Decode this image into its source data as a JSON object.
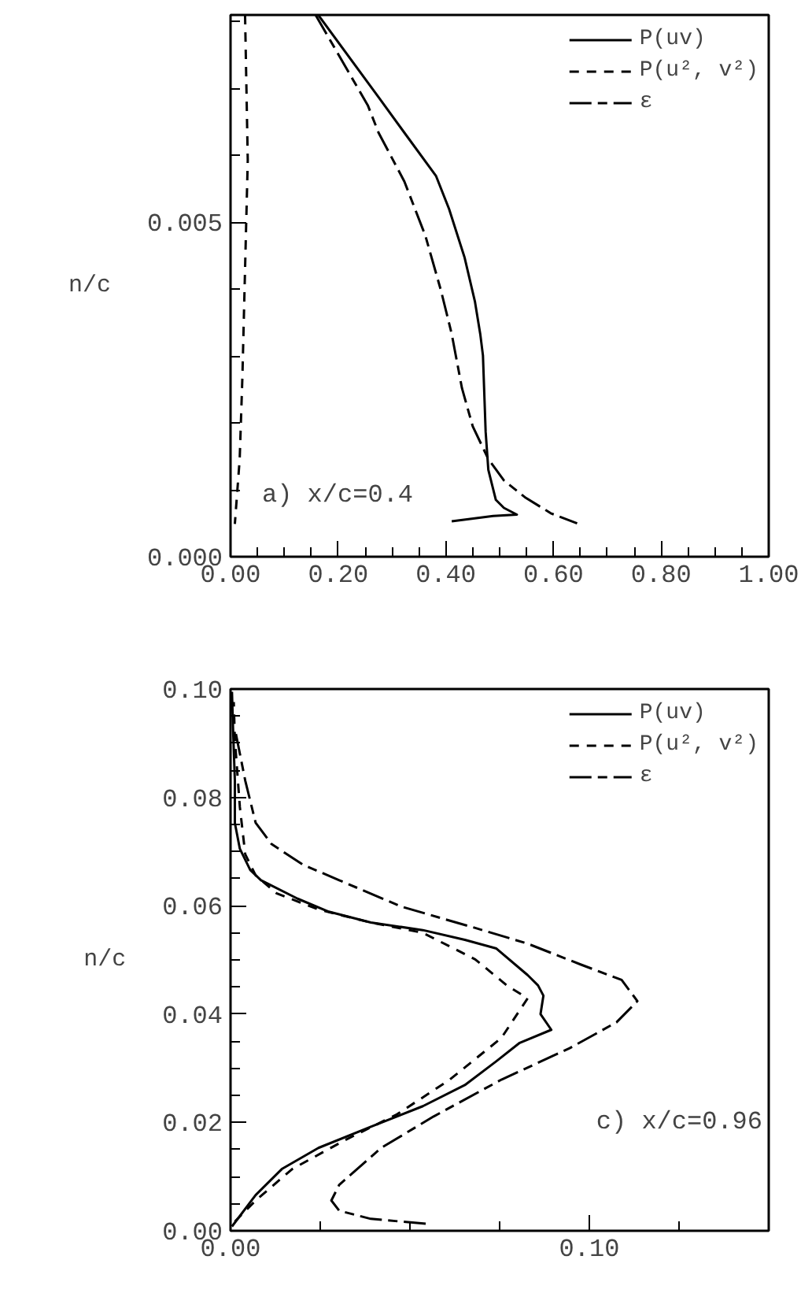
{
  "chart_data": [
    {
      "type": "line",
      "ylabel": "n/c",
      "annotations": [
        "a) x/c=0.4"
      ],
      "legend": "top right",
      "grid": false,
      "xlim": [
        0,
        1
      ],
      "ylim": [
        0,
        0.0081
      ],
      "xticks": [
        {
          "value": 0,
          "label": "0.00"
        },
        {
          "value": 0.05,
          "label": null
        },
        {
          "value": 0.1,
          "label": null
        },
        {
          "value": 0.15,
          "label": null
        },
        {
          "value": 0.2,
          "label": "0.20"
        },
        {
          "value": 0.25,
          "label": null
        },
        {
          "value": 0.3,
          "label": null
        },
        {
          "value": 0.35,
          "label": null
        },
        {
          "value": 0.4,
          "label": "0.40"
        },
        {
          "value": 0.45,
          "label": null
        },
        {
          "value": 0.5,
          "label": null
        },
        {
          "value": 0.55,
          "label": null
        },
        {
          "value": 0.6,
          "label": "0.60"
        },
        {
          "value": 0.65,
          "label": null
        },
        {
          "value": 0.7,
          "label": null
        },
        {
          "value": 0.75,
          "label": null
        },
        {
          "value": 0.8,
          "label": "0.80"
        },
        {
          "value": 0.85,
          "label": null
        },
        {
          "value": 0.9,
          "label": null
        },
        {
          "value": 0.95,
          "label": null
        },
        {
          "value": 1,
          "label": "1.00"
        }
      ],
      "yticks": [
        {
          "value": 0,
          "label": "0.000"
        },
        {
          "value": 0.001,
          "label": null
        },
        {
          "value": 0.002,
          "label": null
        },
        {
          "value": 0.003,
          "label": null
        },
        {
          "value": 0.004,
          "label": null
        },
        {
          "value": 0.005,
          "label": "0.005"
        },
        {
          "value": 0.006,
          "label": null
        },
        {
          "value": 0.007,
          "label": null
        },
        {
          "value": 0.008,
          "label": null
        }
      ],
      "series": [
        {
          "name": "P(uv)",
          "color": "#000000",
          "line_style": "solid",
          "x": [
            0.163,
            0.275,
            0.323,
            0.382,
            0.406,
            0.435,
            0.454,
            0.464,
            0.469,
            0.474,
            0.479,
            0.493,
            0.508,
            0.532,
            0.488,
            0.411
          ],
          "values": [
            0.0081,
            0.00687,
            0.00634,
            0.00569,
            0.0052,
            0.00447,
            0.00382,
            0.00333,
            0.00301,
            0.00187,
            0.0013,
            0.00085,
            0.00073,
            0.00063,
            0.00061,
            0.00053
          ]
        },
        {
          "name": "P(u², v²)",
          "color": "#000000",
          "line_style": "dashed",
          "x": [
            0.027,
            0.032,
            0.027,
            0.022,
            0.017,
            0.008
          ],
          "values": [
            0.0081,
            0.00593,
            0.00431,
            0.00268,
            0.00146,
            0.00049
          ]
        },
        {
          "name": "ε",
          "color": "#000000",
          "line_style": "dashdot",
          "x": [
            0.158,
            0.255,
            0.275,
            0.323,
            0.362,
            0.391,
            0.411,
            0.43,
            0.45,
            0.479,
            0.508,
            0.547,
            0.595,
            0.644
          ],
          "values": [
            0.0081,
            0.00675,
            0.00634,
            0.00561,
            0.0048,
            0.00398,
            0.00333,
            0.00252,
            0.00195,
            0.00146,
            0.00114,
            0.00089,
            0.00065,
            0.0005
          ]
        }
      ]
    },
    {
      "type": "line",
      "ylabel": "n/c",
      "annotations": [
        "c) x/c=0.96"
      ],
      "legend": "top right",
      "grid": false,
      "xlim": [
        0,
        0.15
      ],
      "ylim": [
        0,
        0.1
      ],
      "xticks": [
        {
          "value": 0,
          "label": "0.00"
        },
        {
          "value": 0.025,
          "label": null
        },
        {
          "value": 0.05,
          "label": null
        },
        {
          "value": 0.075,
          "label": null
        },
        {
          "value": 0.1,
          "label": "0.10"
        },
        {
          "value": 0.125,
          "label": null
        }
      ],
      "yticks": [
        {
          "value": 0,
          "label": "0.00"
        },
        {
          "value": 0.005,
          "label": null
        },
        {
          "value": 0.01,
          "label": null
        },
        {
          "value": 0.015,
          "label": null
        },
        {
          "value": 0.02,
          "label": "0.02"
        },
        {
          "value": 0.025,
          "label": null
        },
        {
          "value": 0.03,
          "label": null
        },
        {
          "value": 0.035,
          "label": null
        },
        {
          "value": 0.04,
          "label": "0.04"
        },
        {
          "value": 0.045,
          "label": null
        },
        {
          "value": 0.05,
          "label": null
        },
        {
          "value": 0.055,
          "label": null
        },
        {
          "value": 0.06,
          "label": "0.06"
        },
        {
          "value": 0.065,
          "label": null
        },
        {
          "value": 0.07,
          "label": null
        },
        {
          "value": 0.075,
          "label": null
        },
        {
          "value": 0.08,
          "label": "0.08"
        },
        {
          "value": 0.085,
          "label": null
        },
        {
          "value": 0.09,
          "label": null
        },
        {
          "value": 0.095,
          "label": null
        },
        {
          "value": 0.1,
          "label": "0.10"
        }
      ],
      "series": [
        {
          "name": "P(uv)",
          "color": "#000000",
          "line_style": "solid",
          "x": [
            0.0004,
            0.007,
            0.0143,
            0.0245,
            0.0391,
            0.0536,
            0.0653,
            0.0741,
            0.0806,
            0.0894,
            0.0864,
            0.0872,
            0.0857,
            0.0828,
            0.0741,
            0.0653,
            0.0536,
            0.0391,
            0.0274,
            0.0187,
            0.0085,
            0.0055,
            0.0026,
            0.0012,
            0.0012,
            0.0007,
            0.0004
          ],
          "values": [
            0.0008,
            0.0066,
            0.0114,
            0.0153,
            0.0192,
            0.023,
            0.0269,
            0.0313,
            0.0347,
            0.0371,
            0.04,
            0.0434,
            0.0453,
            0.0472,
            0.0521,
            0.0537,
            0.0555,
            0.0569,
            0.0589,
            0.0613,
            0.0647,
            0.0666,
            0.0705,
            0.0753,
            0.0831,
            0.0927,
            0.0995
          ]
        },
        {
          "name": "P(u², v²)",
          "color": "#000000",
          "line_style": "dashed",
          "x": [
            0.0012,
            0.007,
            0.0172,
            0.0318,
            0.0464,
            0.0609,
            0.0755,
            0.0828,
            0.077,
            0.0682,
            0.0536,
            0.0391,
            0.0245,
            0.0128,
            0.007,
            0.0041,
            0.0026,
            0.0012,
            0.0009
          ],
          "values": [
            0.0017,
            0.0056,
            0.0114,
            0.0167,
            0.0215,
            0.0278,
            0.0356,
            0.0429,
            0.0453,
            0.0501,
            0.055,
            0.0569,
            0.0593,
            0.0623,
            0.0656,
            0.0695,
            0.0782,
            0.0908,
            0.0976
          ]
        },
        {
          "name": "ε",
          "color": "#000000",
          "line_style": "dashdot",
          "x": [
            0.0544,
            0.0391,
            0.0303,
            0.0281,
            0.0303,
            0.042,
            0.0566,
            0.0755,
            0.0945,
            0.1076,
            0.1134,
            0.109,
            0.0974,
            0.0828,
            0.0682,
            0.0478,
            0.0303,
            0.0201,
            0.0114,
            0.007,
            0.0041,
            0.0012
          ],
          "values": [
            0.0013,
            0.0022,
            0.0037,
            0.0056,
            0.0085,
            0.0153,
            0.0211,
            0.0279,
            0.0337,
            0.0385,
            0.0424,
            0.0463,
            0.0492,
            0.053,
            0.0559,
            0.0598,
            0.0647,
            0.0676,
            0.0714,
            0.0753,
            0.0831,
            0.0927
          ]
        }
      ]
    }
  ]
}
